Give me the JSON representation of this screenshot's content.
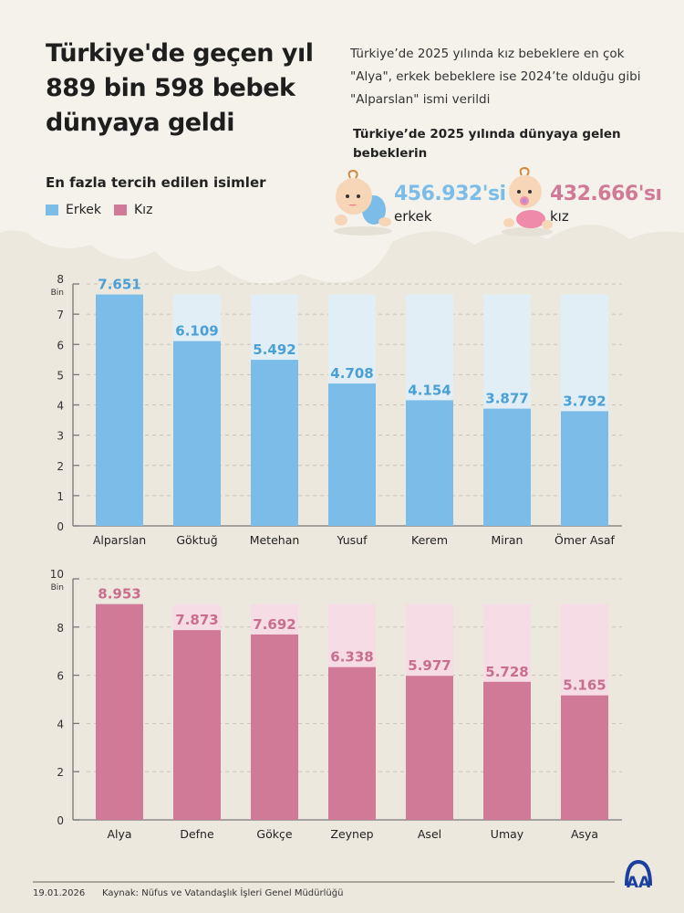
{
  "header": {
    "title": "Türkiye'de geçen yıl 889 bin 598 bebek dünyaya geldi",
    "intro": "Türkiye’de 2025 yılında kız bebeklere en çok \"Alya\", erkek bebeklere ise 2024’te olduğu gibi \"Alparslan\" ismi verildi",
    "births_heading": "Türkiye’de 2025 yılında dünyaya gelen bebeklerin",
    "boys_count": "456.932'si",
    "boys_label": "erkek",
    "girls_count": "432.666'sı",
    "girls_label": "kız"
  },
  "legend": {
    "title": "En fazla tercih edilen isimler",
    "items": [
      {
        "label": "Erkek",
        "color": "#7bbde8"
      },
      {
        "label": "Kız",
        "color": "#d07a97"
      }
    ]
  },
  "colors": {
    "boy": "#7bbde8",
    "boy_bg": "#e1eef6",
    "boy_text": "#4a9fd4",
    "girl": "#d07a97",
    "girl_bg": "#f6dde5",
    "girl_text": "#c96e8c",
    "background": "#ede8de",
    "cloud": "#f5f2ec"
  },
  "chart_data": [
    {
      "type": "bar",
      "series": [
        {
          "name": "Erkek",
          "values": [
            7.651,
            6.109,
            5.492,
            4.708,
            4.154,
            3.877,
            3.792
          ]
        }
      ],
      "categories": [
        "Alparslan",
        "Göktuğ",
        "Metehan",
        "Yusuf",
        "Kerem",
        "Miran",
        "Ömer Asaf"
      ],
      "data_labels": [
        "7.651",
        "6.109",
        "5.492",
        "4.708",
        "4.154",
        "3.877",
        "3.792"
      ],
      "ylabel": "Bin",
      "ylim": [
        0,
        8
      ],
      "yticks": [
        0,
        1,
        2,
        3,
        4,
        5,
        6,
        7,
        8
      ],
      "grid": true
    },
    {
      "type": "bar",
      "series": [
        {
          "name": "Kız",
          "values": [
            8.953,
            7.873,
            7.692,
            6.338,
            5.977,
            5.728,
            5.165
          ]
        }
      ],
      "categories": [
        "Alya",
        "Defne",
        "Gökçe",
        "Zeynep",
        "Asel",
        "Umay",
        "Asya"
      ],
      "data_labels": [
        "8.953",
        "7.873",
        "7.692",
        "6.338",
        "5.977",
        "5.728",
        "5.165"
      ],
      "ylabel": "Bin",
      "ylim": [
        0,
        10
      ],
      "yticks": [
        0,
        2,
        4,
        6,
        8,
        10
      ],
      "grid": true
    }
  ],
  "footer": {
    "date": "19.01.2026",
    "source": "Kaynak: Nüfus ve Vatandaşlık İşleri Genel Müdürlüğü",
    "logo_text": "AA"
  }
}
